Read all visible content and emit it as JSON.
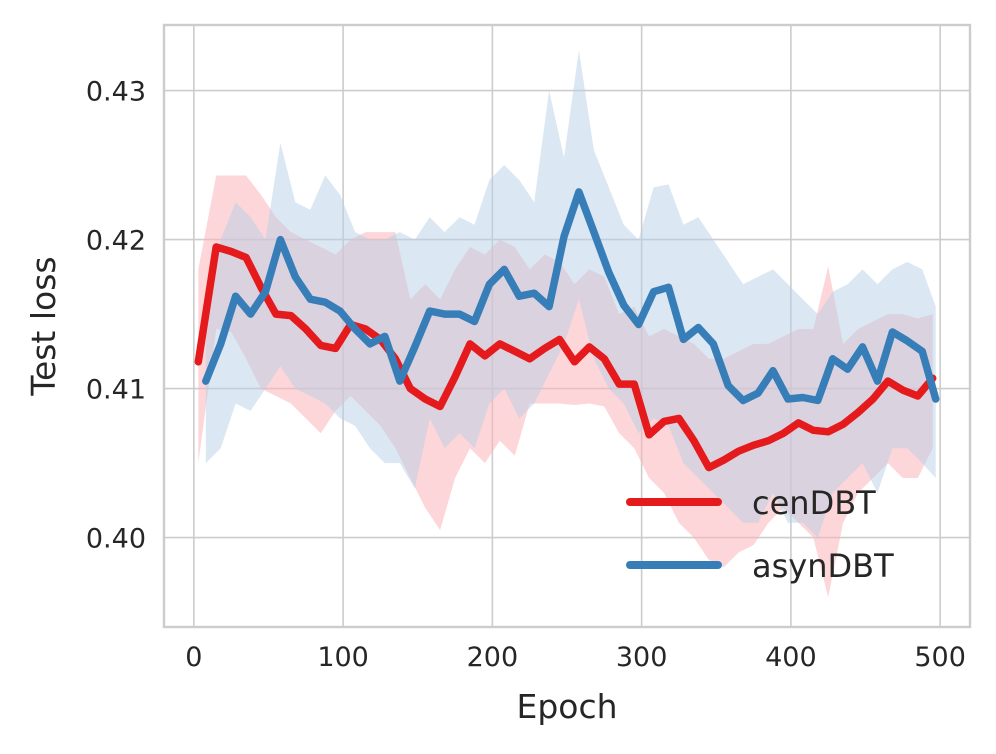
{
  "chart_data": {
    "type": "line",
    "xlabel": "Epoch",
    "ylabel": "Test loss",
    "xlim": [
      -20,
      520
    ],
    "ylim": [
      0.394,
      0.4344
    ],
    "xticks": [
      0,
      100,
      200,
      300,
      400,
      500
    ],
    "yticks": [
      0.4,
      0.41,
      0.42,
      0.43
    ],
    "xtick_labels": [
      "0",
      "100",
      "200",
      "300",
      "400",
      "500"
    ],
    "ytick_labels": [
      "0.40",
      "0.41",
      "0.42",
      "0.43"
    ],
    "grid": true,
    "legend_position": "lower-right",
    "series": [
      {
        "name": "cenDBT",
        "color": "#e41a1c",
        "band_color": "#fbb4b9",
        "x": [
          3,
          15,
          25,
          35,
          45,
          55,
          65,
          75,
          85,
          95,
          105,
          115,
          125,
          135,
          145,
          155,
          165,
          175,
          185,
          195,
          205,
          215,
          225,
          235,
          245,
          255,
          265,
          275,
          285,
          295,
          305,
          315,
          325,
          335,
          345,
          355,
          365,
          375,
          385,
          395,
          405,
          415,
          425,
          435,
          445,
          455,
          465,
          475,
          485,
          495
        ],
        "y": [
          0.4118,
          0.4195,
          0.4192,
          0.4188,
          0.4168,
          0.415,
          0.4149,
          0.414,
          0.4129,
          0.4127,
          0.4143,
          0.414,
          0.4133,
          0.412,
          0.41,
          0.4093,
          0.4088,
          0.4108,
          0.413,
          0.4122,
          0.413,
          0.4125,
          0.412,
          0.4127,
          0.4133,
          0.4118,
          0.4128,
          0.412,
          0.4103,
          0.4103,
          0.4069,
          0.4078,
          0.408,
          0.4065,
          0.4047,
          0.4052,
          0.4058,
          0.4062,
          0.4065,
          0.407,
          0.4077,
          0.4072,
          0.4071,
          0.4076,
          0.4084,
          0.4093,
          0.4105,
          0.4099,
          0.4095,
          0.4107
        ],
        "lower": [
          0.405,
          0.414,
          0.4138,
          0.412,
          0.41,
          0.4095,
          0.409,
          0.408,
          0.407,
          0.4085,
          0.4095,
          0.4085,
          0.4075,
          0.406,
          0.404,
          0.402,
          0.4005,
          0.404,
          0.406,
          0.405,
          0.4065,
          0.4055,
          0.409,
          0.409,
          0.409,
          0.4089,
          0.409,
          0.4088,
          0.407,
          0.406,
          0.404,
          0.403,
          0.401,
          0.4,
          0.3985,
          0.398,
          0.399,
          0.3995,
          0.401,
          0.402,
          0.401,
          0.4,
          0.396,
          0.401,
          0.403,
          0.404,
          0.405,
          0.404,
          0.404,
          0.406
        ],
        "upper": [
          0.418,
          0.4243,
          0.4243,
          0.4243,
          0.423,
          0.4215,
          0.4205,
          0.42,
          0.4195,
          0.419,
          0.42,
          0.4205,
          0.4205,
          0.4205,
          0.416,
          0.417,
          0.416,
          0.418,
          0.4195,
          0.419,
          0.42,
          0.4195,
          0.418,
          0.419,
          0.4185,
          0.417,
          0.418,
          0.4175,
          0.415,
          0.4155,
          0.4135,
          0.414,
          0.4135,
          0.413,
          0.412,
          0.412,
          0.4125,
          0.413,
          0.413,
          0.4135,
          0.414,
          0.414,
          0.4182,
          0.413,
          0.414,
          0.4145,
          0.415,
          0.415,
          0.4147,
          0.415
        ]
      },
      {
        "name": "asynDBT",
        "color": "#377eb8",
        "band_color": "#b8d0e6",
        "x": [
          8,
          18,
          28,
          38,
          48,
          58,
          68,
          78,
          88,
          98,
          108,
          118,
          128,
          138,
          148,
          158,
          168,
          178,
          188,
          198,
          208,
          218,
          228,
          238,
          248,
          258,
          268,
          278,
          288,
          298,
          308,
          318,
          328,
          338,
          348,
          358,
          368,
          378,
          388,
          398,
          408,
          418,
          428,
          438,
          448,
          458,
          468,
          478,
          488,
          497
        ],
        "y": [
          0.4105,
          0.413,
          0.4162,
          0.415,
          0.4165,
          0.42,
          0.4175,
          0.416,
          0.4158,
          0.4152,
          0.414,
          0.413,
          0.4135,
          0.4105,
          0.4128,
          0.4152,
          0.415,
          0.415,
          0.4145,
          0.417,
          0.418,
          0.4162,
          0.4164,
          0.4155,
          0.4202,
          0.4232,
          0.4205,
          0.4178,
          0.4156,
          0.4143,
          0.4165,
          0.4168,
          0.4133,
          0.4141,
          0.413,
          0.4102,
          0.4092,
          0.4097,
          0.4112,
          0.4093,
          0.4094,
          0.4092,
          0.412,
          0.4113,
          0.4128,
          0.4105,
          0.4138,
          0.4132,
          0.4125,
          0.4093
        ],
        "lower": [
          0.405,
          0.406,
          0.409,
          0.4085,
          0.41,
          0.4115,
          0.41,
          0.4095,
          0.409,
          0.408,
          0.4075,
          0.406,
          0.405,
          0.405,
          0.4033,
          0.408,
          0.406,
          0.407,
          0.406,
          0.409,
          0.41,
          0.408,
          0.409,
          0.411,
          0.413,
          0.416,
          0.412,
          0.41,
          0.409,
          0.407,
          0.408,
          0.4075,
          0.405,
          0.404,
          0.403,
          0.402,
          0.401,
          0.401,
          0.403,
          0.401,
          0.401,
          0.4,
          0.403,
          0.404,
          0.405,
          0.403,
          0.406,
          0.406,
          0.405,
          0.404
        ],
        "upper": [
          0.416,
          0.42,
          0.4225,
          0.4215,
          0.42,
          0.4265,
          0.4225,
          0.422,
          0.4243,
          0.423,
          0.4205,
          0.42,
          0.42,
          0.4205,
          0.42,
          0.4215,
          0.4205,
          0.4215,
          0.421,
          0.424,
          0.425,
          0.424,
          0.4225,
          0.43,
          0.4255,
          0.4327,
          0.426,
          0.4235,
          0.421,
          0.42,
          0.4235,
          0.4237,
          0.421,
          0.4215,
          0.42,
          0.4185,
          0.417,
          0.4175,
          0.418,
          0.417,
          0.416,
          0.415,
          0.4165,
          0.417,
          0.418,
          0.417,
          0.418,
          0.4185,
          0.418,
          0.4155
        ]
      }
    ]
  }
}
